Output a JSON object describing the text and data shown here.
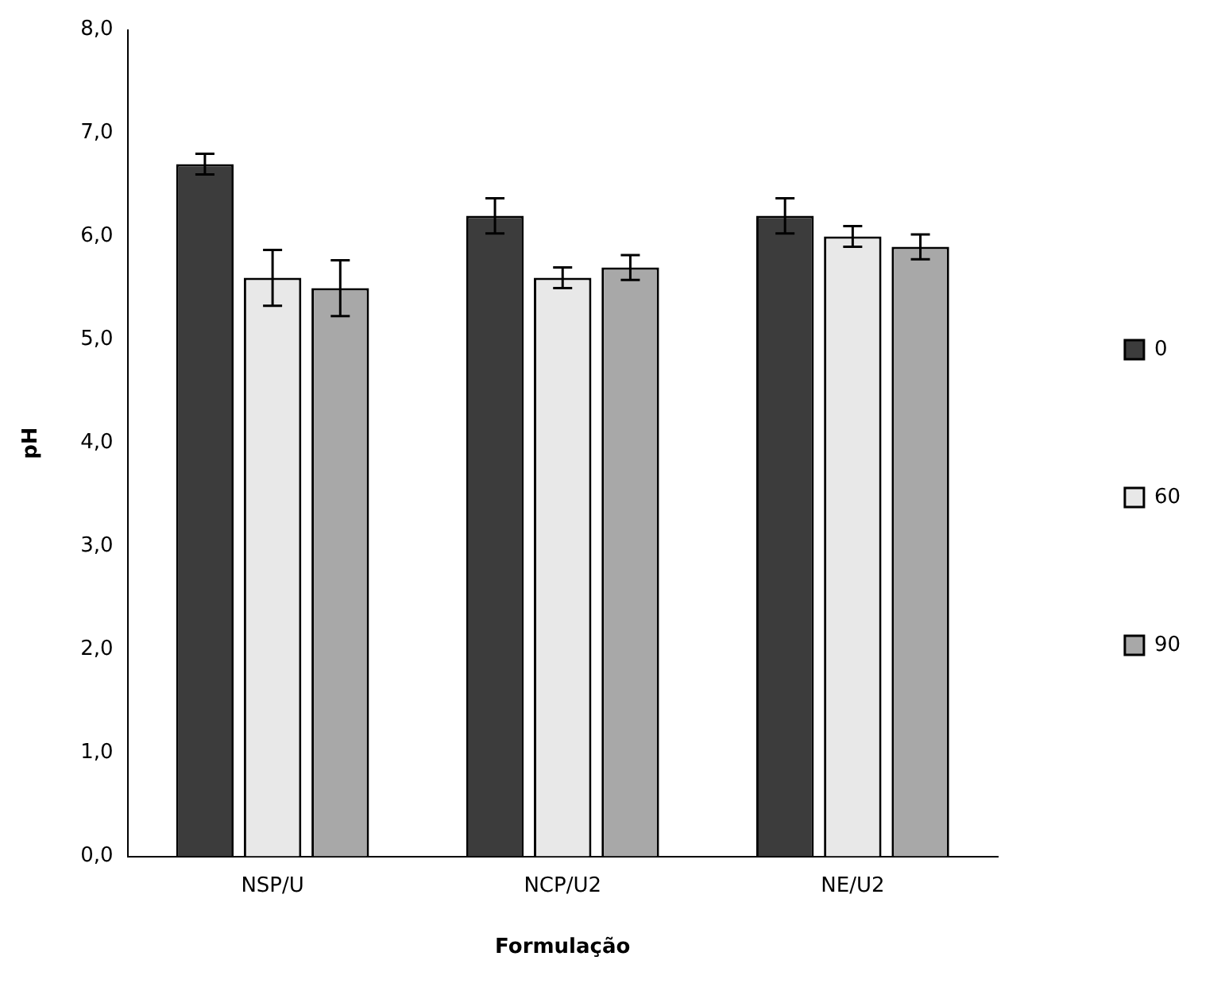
{
  "chart_data": {
    "type": "bar",
    "xlabel": "Formulação",
    "ylabel": "pH",
    "categories": [
      "NSP/U",
      "NCP/U2",
      "NE/U2"
    ],
    "series": [
      {
        "name": "0",
        "color": "#3c3c3c",
        "values": [
          6.7,
          6.2,
          6.2
        ],
        "errors": [
          0.1,
          0.17,
          0.17
        ]
      },
      {
        "name": "60",
        "color": "#e8e8e8",
        "values": [
          5.6,
          5.6,
          6.0
        ],
        "errors": [
          0.27,
          0.1,
          0.1
        ]
      },
      {
        "name": "90",
        "color": "#a8a8a8",
        "values": [
          5.5,
          5.7,
          5.9
        ],
        "errors": [
          0.27,
          0.12,
          0.12
        ]
      }
    ],
    "ylim": [
      0,
      8
    ],
    "yticks": [
      {
        "value": 0,
        "label": "0,0"
      },
      {
        "value": 1,
        "label": "1,0"
      },
      {
        "value": 2,
        "label": "2,0"
      },
      {
        "value": 3,
        "label": "3,0"
      },
      {
        "value": 4,
        "label": "4,0"
      },
      {
        "value": 5,
        "label": "5,0"
      },
      {
        "value": 6,
        "label": "6,0"
      },
      {
        "value": 7,
        "label": "7,0"
      },
      {
        "value": 8,
        "label": "8,0"
      }
    ],
    "grid": false,
    "legend": "right"
  }
}
